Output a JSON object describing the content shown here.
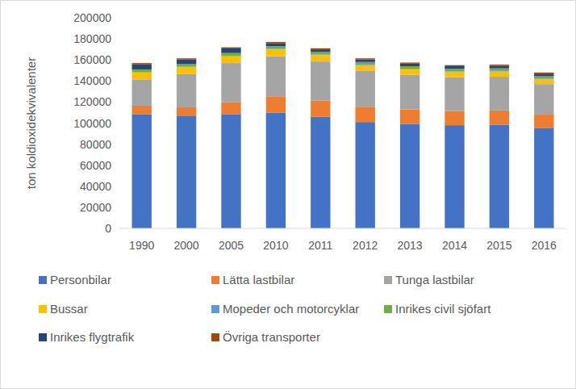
{
  "chart_data": {
    "type": "bar",
    "stacked": true,
    "grid": false,
    "legend": "bottom",
    "y_label": "ton koldioxidekvivalenter",
    "categories": [
      "1990",
      "2000",
      "2005",
      "2010",
      "2011",
      "2012",
      "2013",
      "2014",
      "2015",
      "2016"
    ],
    "ylim": [
      0,
      200000
    ],
    "yticks": [
      0,
      20000,
      40000,
      60000,
      80000,
      100000,
      120000,
      140000,
      160000,
      180000,
      200000
    ],
    "series": [
      {
        "name": "Personbilar",
        "color": "#4472c4",
        "values": [
          108500,
          106500,
          108500,
          110000,
          106000,
          101000,
          99000,
          98000,
          98500,
          95500
        ]
      },
      {
        "name": "Lätta lastbilar",
        "color": "#ed7d31",
        "values": [
          8000,
          8500,
          11500,
          15000,
          15500,
          14500,
          14000,
          13500,
          13500,
          12500
        ]
      },
      {
        "name": "Tunga lastbilar",
        "color": "#a5a5a5",
        "values": [
          25000,
          31500,
          37000,
          38500,
          37000,
          34000,
          33000,
          32000,
          32000,
          29000
        ]
      },
      {
        "name": "Bussar",
        "color": "#ffc000",
        "values": [
          6500,
          6500,
          6500,
          6500,
          6000,
          5500,
          5000,
          5000,
          5000,
          4500
        ]
      },
      {
        "name": "Mopeder och motorcyklar",
        "color": "#5b9bd5",
        "values": [
          500,
          500,
          500,
          500,
          500,
          500,
          500,
          500,
          500,
          500
        ]
      },
      {
        "name": "Inrikes civil sjöfart",
        "color": "#70ad47",
        "values": [
          2500,
          2500,
          2500,
          2500,
          2500,
          2500,
          2500,
          2500,
          2500,
          2500
        ]
      },
      {
        "name": "Inrikes flygtrafik",
        "color": "#264478",
        "values": [
          5000,
          4500,
          4500,
          3000,
          2500,
          2500,
          2500,
          2500,
          2500,
          2500
        ]
      },
      {
        "name": "Övriga transporter",
        "color": "#9e480e",
        "values": [
          1000,
          1000,
          1000,
          1000,
          1000,
          1000,
          1000,
          1000,
          1000,
          1000
        ]
      }
    ]
  }
}
